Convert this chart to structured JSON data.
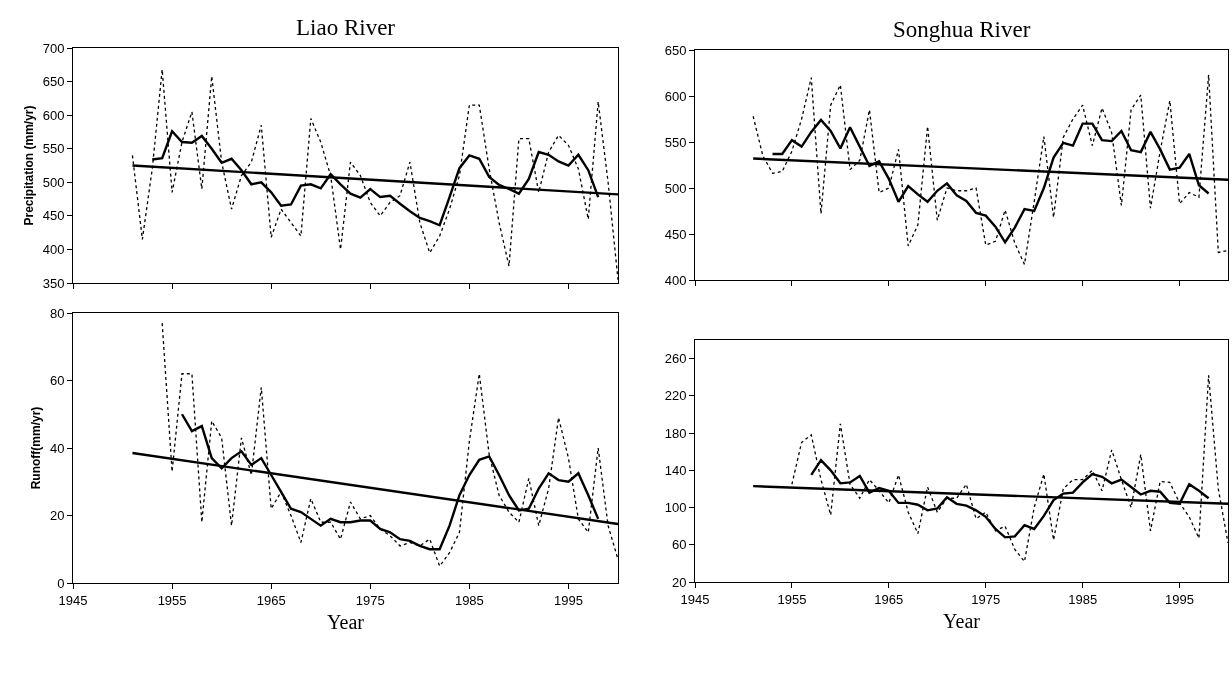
{
  "chart_data": [
    {
      "type": "line",
      "title": "Liao River",
      "ylabel": "Precipitation (mm/yr)",
      "xlim": [
        1945,
        2000
      ],
      "xticks": [
        1945,
        1955,
        1965,
        1975,
        1985,
        1995
      ],
      "ylim": [
        350,
        700
      ],
      "yticks": [
        350,
        400,
        450,
        500,
        550,
        600,
        650,
        700
      ],
      "tick_labels": "y",
      "series": [
        {
          "color": "#000000",
          "line_style": "dotted",
          "x": [
            1951,
            1952,
            1953,
            1954,
            1955,
            1956,
            1957,
            1958,
            1959,
            1960,
            1961,
            1962,
            1963,
            1964,
            1965,
            1966,
            1967,
            1968,
            1969,
            1970,
            1971,
            1972,
            1973,
            1974,
            1975,
            1976,
            1977,
            1978,
            1979,
            1980,
            1981,
            1982,
            1983,
            1984,
            1985,
            1986,
            1987,
            1988,
            1989,
            1990,
            1991,
            1992,
            1993,
            1994,
            1995,
            1996,
            1997,
            1998,
            1999,
            2000
          ],
          "values": [
            540,
            415,
            520,
            668,
            485,
            560,
            605,
            490,
            658,
            530,
            460,
            510,
            530,
            585,
            418,
            460,
            440,
            420,
            595,
            560,
            510,
            400,
            530,
            510,
            470,
            450,
            470,
            480,
            530,
            440,
            395,
            420,
            460,
            510,
            615,
            615,
            520,
            440,
            375,
            565,
            565,
            485,
            545,
            570,
            555,
            520,
            445,
            620,
            500,
            355
          ]
        },
        {
          "color": "#000000",
          "line_style": "solid",
          "x": [
            1953,
            1954,
            1955,
            1956,
            1957,
            1958,
            1959,
            1960,
            1961,
            1962,
            1963,
            1964,
            1965,
            1966,
            1967,
            1968,
            1969,
            1970,
            1971,
            1972,
            1973,
            1974,
            1975,
            1976,
            1977,
            1978,
            1979,
            1980,
            1981,
            1982,
            1983,
            1984,
            1985,
            1986,
            1987,
            1988,
            1989,
            1990,
            1991,
            1992,
            1993,
            1994,
            1995,
            1996,
            1997,
            1998
          ],
          "values": [
            534,
            536,
            576,
            560,
            559,
            569,
            550,
            529,
            535,
            518,
            497,
            500,
            485,
            465,
            467,
            495,
            497,
            491,
            512,
            497,
            483,
            477,
            490,
            478,
            480,
            468,
            457,
            447,
            442,
            436,
            478,
            521,
            540,
            535,
            508,
            496,
            490,
            483,
            505,
            545,
            541,
            531,
            525,
            541,
            518,
            478
          ]
        },
        {
          "color": "#000000",
          "line_style": "solid",
          "x": [
            1951,
            2000
          ],
          "values": [
            525,
            482
          ]
        }
      ]
    },
    {
      "type": "line",
      "title": "Songhua River",
      "xlim": [
        1945,
        2000
      ],
      "xticks": [
        1945,
        1955,
        1965,
        1975,
        1985,
        1995
      ],
      "ylim": [
        400,
        650
      ],
      "yticks": [
        400,
        450,
        500,
        550,
        600,
        650
      ],
      "tick_labels": "y",
      "series": [
        {
          "color": "#000000",
          "line_style": "dotted",
          "x": [
            1951,
            1952,
            1953,
            1954,
            1955,
            1956,
            1957,
            1958,
            1959,
            1960,
            1961,
            1962,
            1963,
            1964,
            1965,
            1966,
            1967,
            1968,
            1969,
            1970,
            1971,
            1972,
            1973,
            1974,
            1975,
            1976,
            1977,
            1978,
            1979,
            1980,
            1981,
            1982,
            1983,
            1984,
            1985,
            1986,
            1987,
            1988,
            1989,
            1990,
            1991,
            1992,
            1993,
            1994,
            1995,
            1996,
            1997,
            1998,
            1999,
            2000
          ],
          "values": [
            578,
            535,
            516,
            518,
            540,
            575,
            620,
            472,
            590,
            612,
            520,
            530,
            585,
            495,
            500,
            542,
            437,
            460,
            567,
            465,
            500,
            497,
            497,
            500,
            438,
            442,
            476,
            440,
            417,
            485,
            556,
            468,
            555,
            575,
            590,
            546,
            587,
            560,
            481,
            585,
            601,
            478,
            540,
            595,
            483,
            495,
            490,
            623,
            430,
            432
          ]
        },
        {
          "color": "#000000",
          "line_style": "solid",
          "x": [
            1953,
            1954,
            1955,
            1956,
            1957,
            1958,
            1959,
            1960,
            1961,
            1962,
            1963,
            1964,
            1965,
            1966,
            1967,
            1968,
            1969,
            1970,
            1971,
            1972,
            1973,
            1974,
            1975,
            1976,
            1977,
            1978,
            1979,
            1980,
            1981,
            1982,
            1983,
            1984,
            1985,
            1986,
            1987,
            1988,
            1989,
            1990,
            1991,
            1992,
            1993,
            1994,
            1995,
            1996,
            1997,
            1998
          ],
          "values": [
            537,
            537,
            552,
            545,
            561,
            574,
            562,
            543,
            566,
            545,
            524,
            529,
            510,
            485,
            502,
            493,
            485,
            497,
            505,
            492,
            486,
            473,
            470,
            458,
            441,
            457,
            477,
            475,
            500,
            533,
            549,
            546,
            570,
            570,
            552,
            551,
            562,
            541,
            539,
            561,
            542,
            520,
            522,
            537,
            503,
            494
          ]
        },
        {
          "color": "#000000",
          "line_style": "solid",
          "x": [
            1951,
            2000
          ],
          "values": [
            532,
            509
          ]
        }
      ]
    },
    {
      "type": "line",
      "xlabel": "Year",
      "ylabel": "Runoff(mm/yr)",
      "xlim": [
        1945,
        2000
      ],
      "xticks": [
        1945,
        1955,
        1965,
        1975,
        1985,
        1995
      ],
      "ylim": [
        0,
        80
      ],
      "yticks": [
        0,
        20,
        40,
        60,
        80
      ],
      "series": [
        {
          "color": "#000000",
          "line_style": "dotted",
          "x": [
            1954,
            1955,
            1956,
            1957,
            1958,
            1959,
            1960,
            1961,
            1962,
            1963,
            1964,
            1965,
            1966,
            1967,
            1968,
            1969,
            1970,
            1971,
            1972,
            1973,
            1974,
            1975,
            1976,
            1977,
            1978,
            1979,
            1980,
            1981,
            1982,
            1983,
            1984,
            1985,
            1986,
            1987,
            1988,
            1989,
            1990,
            1991,
            1992,
            1993,
            1994,
            1995,
            1996,
            1997,
            1998,
            1999,
            2000
          ],
          "values": [
            77,
            33,
            62,
            62,
            18,
            48,
            43,
            17,
            43,
            32,
            58,
            22,
            27,
            20,
            12,
            25,
            18,
            18,
            13,
            24,
            19,
            20,
            16,
            14,
            11,
            12,
            11,
            13,
            5,
            9,
            15,
            42,
            62,
            38,
            26,
            21,
            18,
            31,
            17,
            28,
            49,
            37,
            19,
            15,
            40,
            17,
            7
          ]
        },
        {
          "color": "#000000",
          "line_style": "solid",
          "x": [
            1956,
            1957,
            1958,
            1959,
            1960,
            1961,
            1962,
            1963,
            1964,
            1965,
            1966,
            1967,
            1968,
            1969,
            1970,
            1971,
            1972,
            1973,
            1974,
            1975,
            1976,
            1977,
            1978,
            1979,
            1980,
            1981,
            1982,
            1983,
            1984,
            1985,
            1986,
            1987,
            1988,
            1989,
            1990,
            1991,
            1992,
            1993,
            1994,
            1995,
            1996,
            1997,
            1998
          ],
          "values": [
            50,
            45,
            46.5,
            37,
            34,
            37,
            39,
            35,
            37,
            32,
            27,
            22,
            21,
            19,
            17,
            19,
            18,
            18,
            18.5,
            18.5,
            16,
            15,
            13,
            12.5,
            11,
            10,
            10,
            17,
            26,
            32,
            36.5,
            37.5,
            32,
            26,
            21.5,
            22,
            28,
            32.5,
            30.5,
            30,
            32.5,
            26,
            19
          ]
        },
        {
          "color": "#000000",
          "line_style": "solid",
          "x": [
            1951,
            2000
          ],
          "values": [
            38.5,
            17.5
          ]
        }
      ]
    },
    {
      "type": "line",
      "xlabel": "Year",
      "xlim": [
        1945,
        2000
      ],
      "xticks": [
        1945,
        1955,
        1965,
        1975,
        1985,
        1995
      ],
      "ylim": [
        20,
        280
      ],
      "yticks": [
        20,
        60,
        100,
        140,
        180,
        220,
        260
      ],
      "series": [
        {
          "color": "#000000",
          "line_style": "dotted",
          "x": [
            1955,
            1956,
            1957,
            1958,
            1959,
            1960,
            1961,
            1962,
            1963,
            1964,
            1965,
            1966,
            1967,
            1968,
            1969,
            1970,
            1971,
            1972,
            1973,
            1974,
            1975,
            1976,
            1977,
            1978,
            1979,
            1980,
            1981,
            1982,
            1983,
            1984,
            1985,
            1986,
            1987,
            1988,
            1989,
            1990,
            1991,
            1992,
            1993,
            1994,
            1995,
            1996,
            1997,
            1998,
            1999,
            2000
          ],
          "values": [
            125,
            170,
            178,
            130,
            92,
            190,
            125,
            110,
            130,
            118,
            105,
            135,
            95,
            72,
            122,
            95,
            110,
            110,
            125,
            88,
            95,
            75,
            80,
            55,
            42,
            100,
            136,
            65,
            120,
            130,
            130,
            140,
            118,
            162,
            130,
            100,
            157,
            75,
            128,
            127,
            105,
            90,
            67,
            242,
            120,
            62
          ]
        },
        {
          "color": "#000000",
          "line_style": "solid",
          "x": [
            1957,
            1958,
            1959,
            1960,
            1961,
            1962,
            1963,
            1964,
            1965,
            1966,
            1967,
            1968,
            1969,
            1970,
            1971,
            1972,
            1973,
            1974,
            1975,
            1976,
            1977,
            1978,
            1979,
            1980,
            1981,
            1982,
            1983,
            1984,
            1985,
            1986,
            1987,
            1988,
            1989,
            1990,
            1991,
            1992,
            1993,
            1994,
            1995,
            1996,
            1997,
            1998
          ],
          "values": [
            135,
            151,
            140,
            126,
            127,
            134,
            116,
            121,
            118,
            105,
            105,
            103,
            97,
            99,
            111,
            104,
            102,
            97,
            90,
            77,
            68,
            69,
            81,
            77,
            91,
            108,
            115,
            116,
            127,
            136,
            133,
            126,
            130,
            122,
            114,
            118,
            117,
            105,
            104,
            125,
            118,
            110
          ]
        },
        {
          "color": "#000000",
          "line_style": "solid",
          "x": [
            1951,
            2000
          ],
          "values": [
            123,
            104
          ]
        }
      ]
    }
  ]
}
